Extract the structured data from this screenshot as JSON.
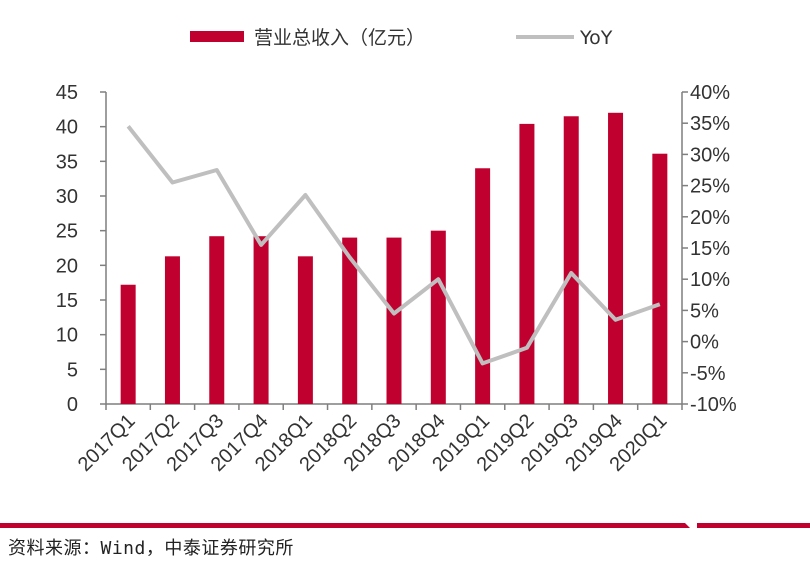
{
  "chart_data": {
    "type": "bar+line",
    "categories": [
      "2017Q1",
      "2017Q2",
      "2017Q3",
      "2017Q4",
      "2018Q1",
      "2018Q2",
      "2018Q3",
      "2018Q4",
      "2019Q1",
      "2019Q2",
      "2019Q3",
      "2019Q4",
      "2020Q1"
    ],
    "series": [
      {
        "name": "营业总收入（亿元）",
        "type": "bar",
        "axis": "left",
        "color": "#C0002E",
        "values": [
          17.2,
          21.3,
          24.2,
          24.2,
          21.3,
          24.0,
          24.0,
          25.0,
          34.0,
          40.4,
          41.5,
          42.0,
          36.1
        ]
      },
      {
        "name": "YoY",
        "type": "line",
        "axis": "right",
        "color": "#BFBFBF",
        "values": [
          34.5,
          25.5,
          27.5,
          15.5,
          23.5,
          13.5,
          4.5,
          10.0,
          -3.5,
          -1.0,
          11.0,
          3.5,
          6.0
        ]
      }
    ],
    "y_left": {
      "ylim": [
        0,
        45
      ],
      "ticks": [
        "0",
        "5",
        "10",
        "15",
        "20",
        "25",
        "30",
        "35",
        "40",
        "45"
      ]
    },
    "y_right": {
      "ylim": [
        -10,
        40
      ],
      "ticks": [
        "-10%",
        "-5%",
        "0%",
        "5%",
        "10%",
        "15%",
        "20%",
        "25%",
        "30%",
        "35%",
        "40%"
      ]
    },
    "legend_position": "top-center",
    "grid": false
  },
  "source_text": "资料来源：Wind，中泰证券研究所",
  "decor_color": "#C0002E"
}
